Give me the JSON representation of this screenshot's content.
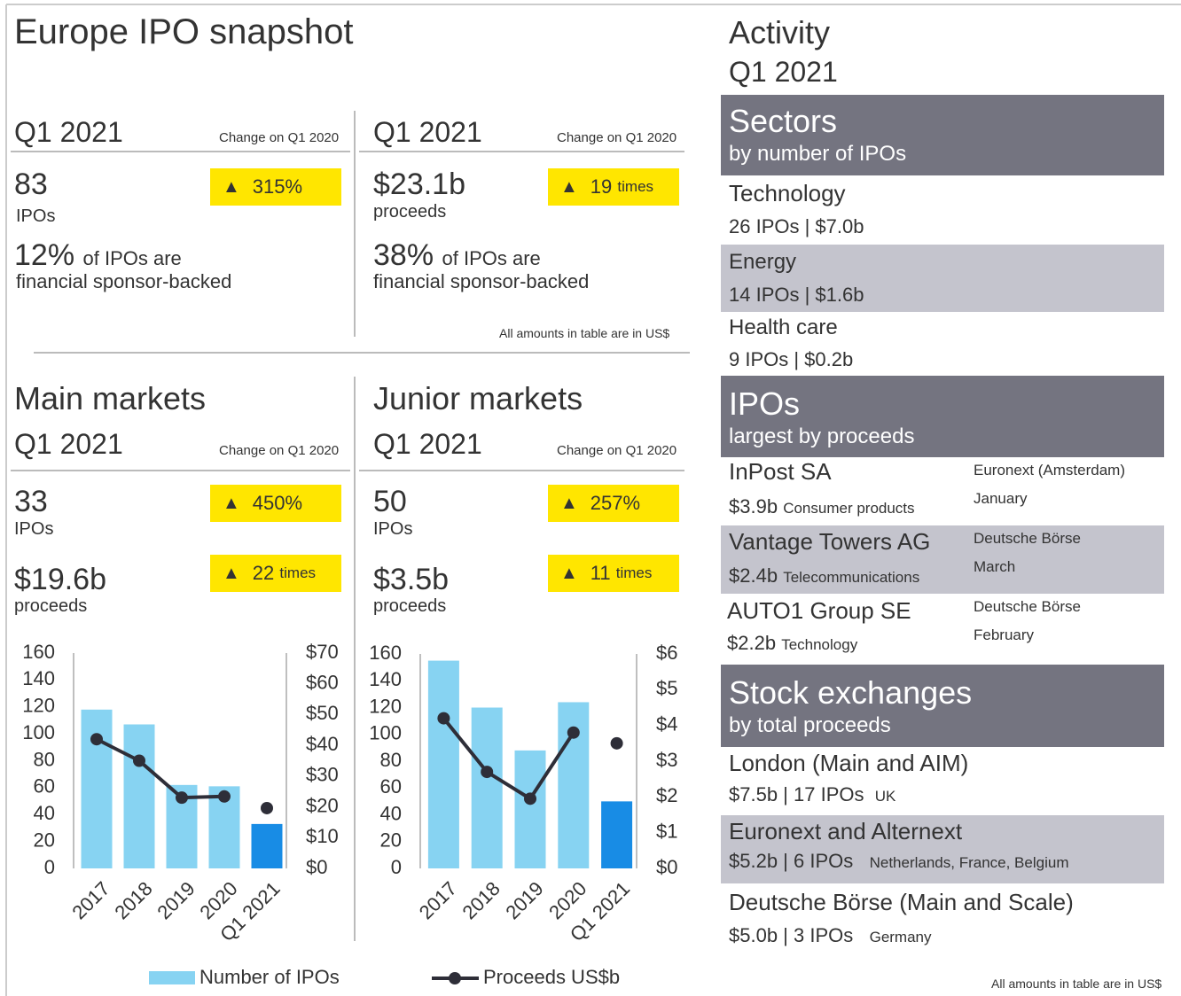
{
  "title": "Europe IPO snapshot",
  "snapshot": [
    {
      "period": "Q1 2021",
      "change_label": "Change on Q1 2020",
      "value": "83",
      "unit": "IPOs",
      "change": "315%",
      "share": "12%",
      "share_text": "of IPOs are",
      "share_text2": "financial sponsor-backed"
    },
    {
      "period": "Q1 2021",
      "change_label": "Change on Q1 2020",
      "value": "$23.1b",
      "unit": "proceeds",
      "change": "19",
      "change_unit": "times",
      "share": "38%",
      "share_text": "of IPOs are",
      "share_text2": "financial sponsor-backed"
    }
  ],
  "note": "All amounts in table are in US$",
  "markets": [
    {
      "title": "Main markets",
      "period": "Q1 2021",
      "change_label": "Change on Q1 2020",
      "ipos": "33",
      "ipos_unit": "IPOs",
      "ipos_change": "450%",
      "proceeds": "$19.6b",
      "proceeds_unit": "proceeds",
      "proceeds_change": "22",
      "proceeds_change_unit": "times"
    },
    {
      "title": "Junior markets",
      "period": "Q1 2021",
      "change_label": "Change on Q1 2020",
      "ipos": "50",
      "ipos_unit": "IPOs",
      "ipos_change": "257%",
      "proceeds": "$3.5b",
      "proceeds_unit": "proceeds",
      "proceeds_change": "11",
      "proceeds_change_unit": "times"
    }
  ],
  "chart_data": [
    {
      "type": "bar_line",
      "categories": [
        "2017",
        "2018",
        "2019",
        "2020",
        "Q1 2021"
      ],
      "series": [
        {
          "name": "Number of IPOs",
          "color": "#87d3f2",
          "colors": [
            "#87d3f2",
            "#87d3f2",
            "#87d3f2",
            "#87d3f2",
            "#188ce5"
          ],
          "values": [
            118,
            107,
            62,
            61,
            33
          ]
        },
        {
          "name": "Proceeds US$b",
          "color": "#2e2e38",
          "axis": "y2",
          "values": [
            42,
            35,
            23,
            23.4,
            19.6
          ]
        }
      ],
      "ylim": [
        0,
        160
      ],
      "yticks": [
        0,
        20,
        40,
        60,
        80,
        100,
        120,
        140,
        160
      ],
      "y2lim": [
        0,
        70
      ],
      "y2ticks": [
        {
          "value": 0,
          "label": "$0"
        },
        {
          "value": 10,
          "label": "$10"
        },
        {
          "value": 20,
          "label": "$20"
        },
        {
          "value": 30,
          "label": "$30"
        },
        {
          "value": 40,
          "label": "$40"
        },
        {
          "value": 50,
          "label": "$50"
        },
        {
          "value": 60,
          "label": "$60"
        },
        {
          "value": 70,
          "label": "$70"
        }
      ]
    },
    {
      "type": "bar_line",
      "categories": [
        "2017",
        "2018",
        "2019",
        "2020",
        "Q1 2021"
      ],
      "series": [
        {
          "name": "Number of IPOs",
          "color": "#87d3f2",
          "colors": [
            "#87d3f2",
            "#87d3f2",
            "#87d3f2",
            "#87d3f2",
            "#188ce5"
          ],
          "values": [
            155,
            120,
            88,
            124,
            50
          ]
        },
        {
          "name": "Proceeds US$b",
          "color": "#2e2e38",
          "axis": "y2",
          "values": [
            4.2,
            2.7,
            1.95,
            3.8,
            3.5
          ]
        }
      ],
      "ylim": [
        0,
        160
      ],
      "yticks": [
        0,
        20,
        40,
        60,
        80,
        100,
        120,
        140,
        160
      ],
      "y2lim": [
        0,
        6
      ],
      "y2ticks": [
        {
          "value": 0,
          "label": "$0"
        },
        {
          "value": 1,
          "label": "$1"
        },
        {
          "value": 2,
          "label": "$2"
        },
        {
          "value": 3,
          "label": "$3"
        },
        {
          "value": 4,
          "label": "$4"
        },
        {
          "value": 5,
          "label": "$5"
        },
        {
          "value": 6,
          "label": "$6"
        }
      ]
    }
  ],
  "activity": {
    "title": "Activity",
    "period": "Q1 2021"
  },
  "sectors": {
    "title": "Sectors",
    "subtitle": "by number of IPOs",
    "rows": [
      {
        "name": "Technology",
        "detail": "26 IPOs |  $7.0b"
      },
      {
        "name": "Energy",
        "detail": "14 IPOs | $1.6b"
      },
      {
        "name": "Health care",
        "detail": "9 IPOs | $0.2b"
      }
    ]
  },
  "ipos": {
    "title": "IPOs",
    "subtitle": "largest by proceeds",
    "rows": [
      {
        "name": "InPost SA",
        "proceeds": "$3.9b",
        "sector": "Consumer products",
        "exchange": "Euronext (Amsterdam)",
        "month": "January"
      },
      {
        "name": "Vantage Towers AG",
        "proceeds": "$2.4b",
        "sector": "Telecommunications",
        "exchange": "Deutsche Börse",
        "month": "March"
      },
      {
        "name": "AUTO1 Group SE",
        "proceeds": "$2.2b",
        "sector": "Technology",
        "exchange": "Deutsche Börse",
        "month": "February"
      }
    ]
  },
  "exchanges": {
    "title": "Stock exchanges",
    "subtitle": "by total proceeds",
    "rows": [
      {
        "name": "London (Main and AIM)",
        "detail": "$7.5b | 17 IPOs",
        "country": "UK"
      },
      {
        "name": "Euronext and Alternext",
        "detail": "$5.2b |  6 IPOs",
        "country": "Netherlands, France, Belgium"
      },
      {
        "name": "Deutsche Börse (Main and Scale)",
        "detail": "$5.0b |  3 IPOs",
        "country": "Germany"
      }
    ]
  }
}
